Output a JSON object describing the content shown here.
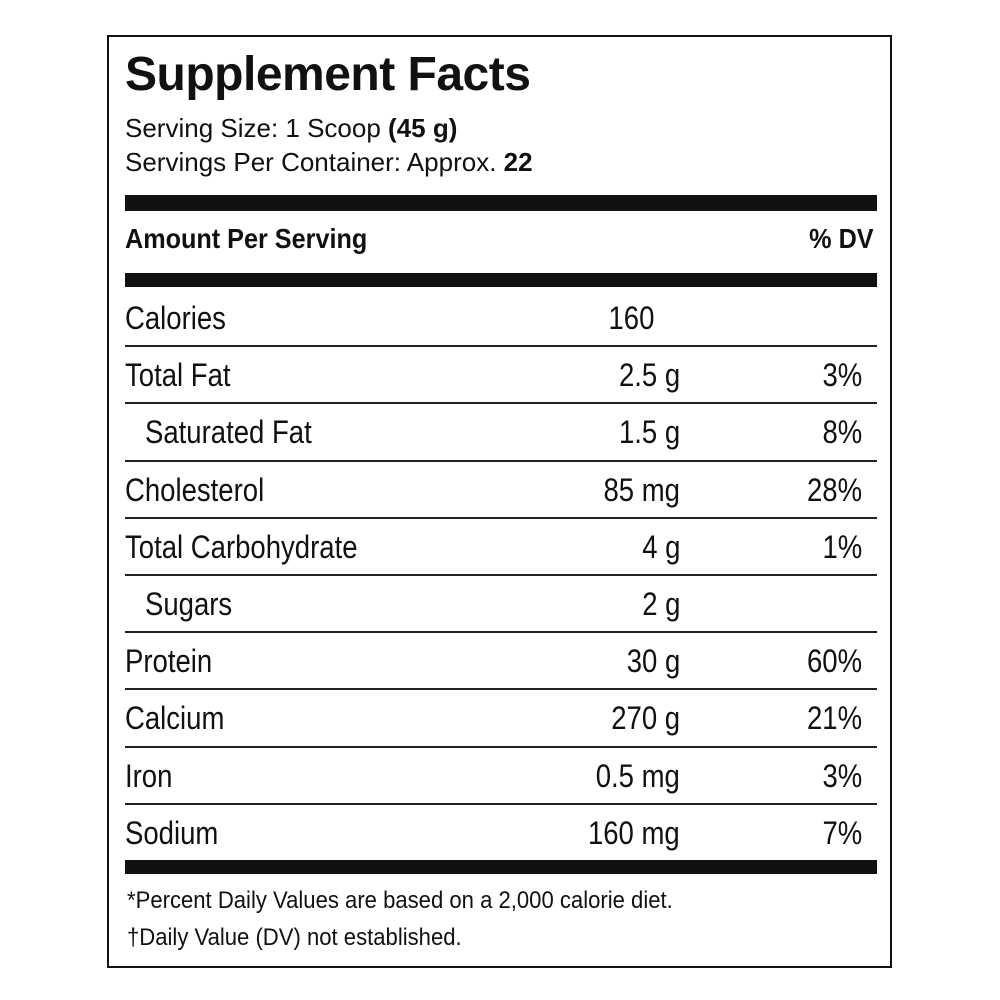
{
  "title": "Supplement Facts",
  "serving_size": {
    "label": "Serving Size: 1 Scoop",
    "value": "(45 g)"
  },
  "servings_per_container": {
    "label": "Servings Per Container: Approx.",
    "value": "22"
  },
  "header": {
    "amount": "Amount Per Serving",
    "dv": "% DV"
  },
  "rows": [
    {
      "label": "Calories",
      "amount": "160"
    },
    {
      "label": "Total Fat",
      "amount": "2.5 g",
      "dv": "3%"
    },
    {
      "label": "Saturated Fat",
      "amount": "1.5 g",
      "dv": "8%"
    },
    {
      "label": "Cholesterol",
      "amount": "85 mg",
      "dv": "28%"
    },
    {
      "label": "Total Carbohydrate",
      "amount": "4 g",
      "dv": "1%"
    },
    {
      "label": "Sugars",
      "amount": "2 g"
    },
    {
      "label": "Protein",
      "amount": "30 g",
      "dv": "60%"
    },
    {
      "label": "Calcium",
      "amount": "270 g",
      "dv": "21%"
    },
    {
      "label": "Iron",
      "amount": "0.5 mg",
      "dv": "3%"
    },
    {
      "label": "Sodium",
      "amount": "160 mg",
      "dv": "7%"
    }
  ],
  "footnotes": [
    "*Percent Daily Values are based on a 2,000 calorie diet.",
    "†Daily Value (DV) not established."
  ]
}
